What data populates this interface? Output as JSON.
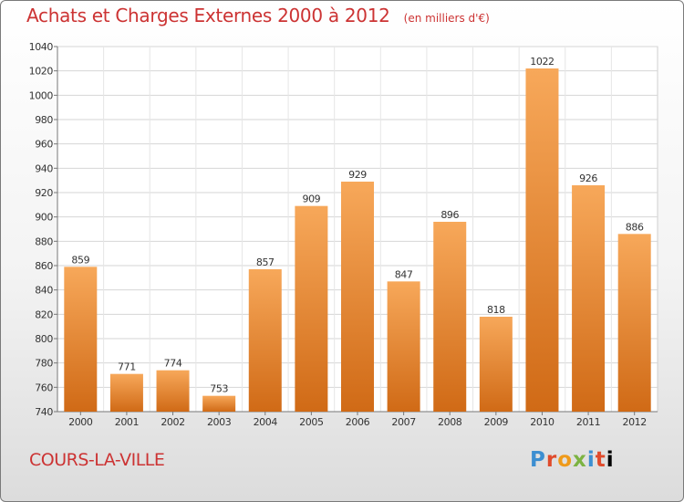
{
  "title": "Achats et Charges Externes 2000 à 2012",
  "unit_label": "(en milliers d'€)",
  "city": "COURS-LA-VILLE",
  "logo_text": "Proxiti",
  "colors": {
    "title": "#cc3333",
    "bar_top": "#f7a85a",
    "bar_bottom": "#d06a16"
  },
  "chart_data": {
    "type": "bar",
    "categories": [
      "2000",
      "2001",
      "2002",
      "2003",
      "2004",
      "2005",
      "2006",
      "2007",
      "2008",
      "2009",
      "2010",
      "2011",
      "2012"
    ],
    "values": [
      859,
      771,
      774,
      753,
      857,
      909,
      929,
      847,
      896,
      818,
      1022,
      926,
      886
    ],
    "title": "Achats et Charges Externes 2000 à 2012",
    "subtitle": "(en milliers d'€)",
    "xlabel": "",
    "ylabel": "",
    "ylim": [
      740,
      1040
    ],
    "yticks": [
      740,
      760,
      780,
      800,
      820,
      840,
      860,
      880,
      900,
      920,
      940,
      960,
      980,
      1000,
      1020,
      1040
    ],
    "grid": true,
    "legend": "none"
  }
}
